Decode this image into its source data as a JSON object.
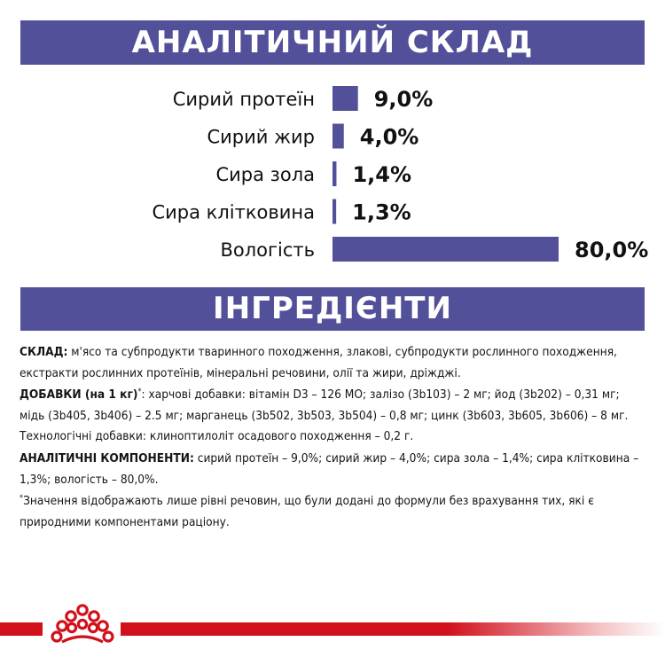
{
  "banners": {
    "analysis_title": "АНАЛІТИЧНИЙ СКЛАД",
    "ingredients_title": "ІНГРЕДІЄНТИ"
  },
  "colors": {
    "brand_purple": "#53509a",
    "brand_red": "#d2101b"
  },
  "chart_data": {
    "type": "bar",
    "orientation": "horizontal",
    "categories": [
      "Сирий протеїн",
      "Сирий жир",
      "Сира зола",
      "Сира клітковина",
      "Вологість"
    ],
    "values": [
      9.0,
      4.0,
      1.4,
      1.3,
      80.0
    ],
    "value_labels": [
      "9,0%",
      "4,0%",
      "1,4%",
      "1,3%",
      "80,0%"
    ],
    "title": "АНАЛІТИЧНИЙ СКЛАД",
    "xlim": [
      0,
      80
    ],
    "grid": false,
    "color": "#53509a"
  },
  "ingredients": {
    "composition_label": "СКЛАД:",
    "composition_text": " м'ясо та субпродукти тваринного походження, злакові, субпродукти рослинного походження, екстракти рослинних протеїнів, мінеральні речовини, олії та жири, дріжджі.",
    "additives_label": "ДОБАВКИ (на 1 кг)",
    "additives_mark": "*",
    "additives_text": ": харчові добавки: вітамін D3 – 126 МО; залізо (3b103) – 2 мг; йод (3b202) – 0,31 мг; мідь (3b405, 3b406) – 2.5 мг; марганець (3b502, 3b503, 3b504) – 0,8 мг; цинк (3b603, 3b605, 3b606) – 8 мг. Технологічні добавки: клиноптилоліт осадового походження – 0,2 г.",
    "analytical_label": "АНАЛІТИЧНІ КОМПОНЕНТИ:",
    "analytical_text": " сирий протеїн – 9,0%; сирий жир – 4,0%; сира зола – 1,4%; сира клітковина – 1,3%; вологість – 80,0%.",
    "footnote_mark": "*",
    "footnote_text": "Значення відображають лише рівні речовин, що були додані до формули без врахування тих, які є природними компонентами раціону."
  },
  "footer": {
    "logo": "royal-canin-crown-icon"
  }
}
